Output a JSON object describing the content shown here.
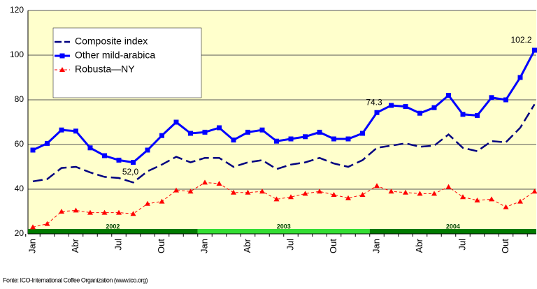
{
  "chart_data": {
    "type": "line",
    "categories": [
      "Jan",
      null,
      null,
      "Abr",
      null,
      null,
      "Jul",
      null,
      null,
      "Out",
      null,
      null,
      "Jan",
      null,
      null,
      "Abr",
      null,
      null,
      "Jul",
      null,
      null,
      "Out",
      null,
      null,
      "Jan",
      null,
      null,
      "Abr",
      null,
      null,
      "Jul",
      null,
      null,
      "Out",
      null,
      null
    ],
    "x_groups": [
      "2002",
      "2003",
      "2004"
    ],
    "ylim": [
      20,
      120
    ],
    "yticks": [
      20,
      40,
      60,
      80,
      100,
      120
    ],
    "grid": true,
    "legend": "top-left",
    "series": [
      {
        "name": "Composite index",
        "color": "#000080",
        "values": [
          43.5,
          44.5,
          49.5,
          50,
          47.5,
          45.5,
          45,
          43,
          48,
          51,
          54.5,
          52,
          54,
          54,
          50,
          52,
          53,
          49,
          51,
          52,
          54,
          51.5,
          50,
          53,
          58.5,
          59.5,
          60.5,
          59,
          59.5,
          64.5,
          58.5,
          57,
          61.5,
          61,
          67.5,
          78
        ]
      },
      {
        "name": "Other mild-arabica",
        "color": "#0000ff",
        "values": [
          57.5,
          60.5,
          66.5,
          66,
          58.5,
          55,
          53,
          52.0,
          57.5,
          64,
          70,
          65,
          65.5,
          67.5,
          62,
          65.5,
          66.5,
          61.5,
          62.5,
          63.5,
          65.5,
          62.5,
          62.5,
          65,
          74.3,
          77.5,
          77,
          74,
          76.5,
          82,
          73.5,
          73,
          81,
          80,
          90,
          102.2
        ],
        "value_labels": [
          null,
          null,
          null,
          null,
          null,
          null,
          null,
          "52,0",
          null,
          null,
          null,
          null,
          null,
          null,
          null,
          null,
          null,
          null,
          null,
          null,
          null,
          null,
          null,
          null,
          "74.3",
          null,
          null,
          null,
          null,
          null,
          null,
          null,
          null,
          null,
          null,
          "102.2"
        ]
      },
      {
        "name": "Robusta—NY",
        "color": "#ff0000",
        "values": [
          23,
          24.5,
          30,
          30.5,
          29.5,
          29.5,
          29.5,
          29,
          33.5,
          34.5,
          39.5,
          39,
          43,
          42.5,
          38.5,
          38.5,
          39,
          35.5,
          36.5,
          38,
          39,
          37.5,
          36,
          37.5,
          41.5,
          39,
          38.5,
          38,
          38,
          41,
          36.5,
          35,
          35.5,
          32,
          34.5,
          39
        ]
      }
    ],
    "source": "Fonte: ICO-International Coffee Organization (www.ico.org)"
  }
}
